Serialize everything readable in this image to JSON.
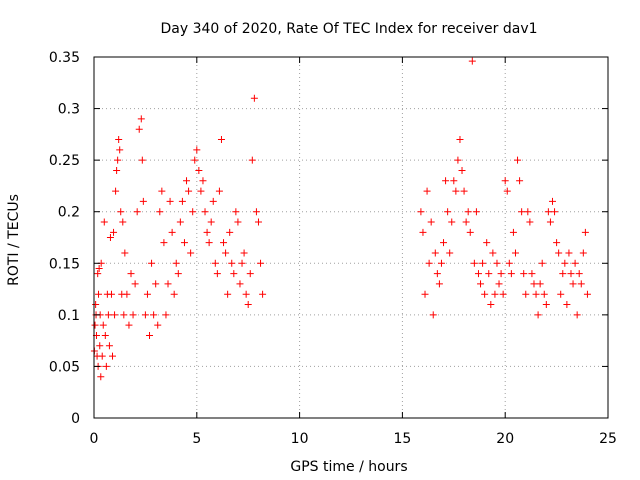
{
  "chart_data": {
    "type": "scatter",
    "title": "Day 340 of 2020, Rate Of TEC Index for receiver dav1",
    "xlabel": "GPS time / hours",
    "ylabel": "ROTI / TECUs",
    "xlim": [
      0,
      25
    ],
    "ylim": [
      0,
      0.35
    ],
    "xticks": [
      0,
      5,
      10,
      15,
      20,
      25
    ],
    "xtick_labels": [
      "0",
      "5",
      "10",
      "15",
      "20",
      "25"
    ],
    "yticks": [
      0,
      0.05,
      0.1,
      0.15,
      0.2,
      0.25,
      0.3,
      0.35
    ],
    "ytick_labels": [
      "0",
      "0.05",
      "0.1",
      "0.15",
      "0.2",
      "0.25",
      "0.3",
      "0.35"
    ],
    "grid": true,
    "marker": "+",
    "color": "#ff0000",
    "series": [
      {
        "x": [
          0.02,
          0.05,
          0.08,
          0.1,
          0.12,
          0.15,
          0.18,
          0.2,
          0.22,
          0.25,
          0.28,
          0.3,
          0.33,
          0.35,
          0.4,
          0.45,
          0.5,
          0.55,
          0.6,
          0.65,
          0.7,
          0.75,
          0.8,
          0.85,
          0.9,
          0.95,
          1.0,
          1.05,
          1.1,
          1.15,
          1.2,
          1.25,
          1.3,
          1.35,
          1.4,
          1.45,
          1.5,
          1.6,
          1.7,
          1.8,
          1.9,
          2.0,
          2.1,
          2.2,
          2.3,
          2.35,
          2.4,
          2.5,
          2.6,
          2.7,
          2.8,
          2.9,
          3.0,
          3.1,
          3.2,
          3.3,
          3.4,
          3.5,
          3.6,
          3.7,
          3.8,
          3.9,
          4.0,
          4.1,
          4.2,
          4.3,
          4.4,
          4.5,
          4.6,
          4.7,
          4.8,
          4.9,
          5.0,
          5.1,
          5.2,
          5.3,
          5.4,
          5.5,
          5.6,
          5.7,
          5.8,
          5.9,
          6.0,
          6.1,
          6.2,
          6.3,
          6.4,
          6.5,
          6.6,
          6.7,
          6.8,
          6.9,
          7.0,
          7.1,
          7.2,
          7.3,
          7.4,
          7.5,
          7.6,
          7.7,
          7.8,
          7.9,
          8.0,
          8.1,
          8.2
        ],
        "y": [
          0.065,
          0.09,
          0.11,
          0.1,
          0.08,
          0.06,
          0.14,
          0.05,
          0.12,
          0.145,
          0.07,
          0.1,
          0.04,
          0.15,
          0.06,
          0.09,
          0.19,
          0.08,
          0.05,
          0.12,
          0.1,
          0.07,
          0.175,
          0.12,
          0.06,
          0.18,
          0.1,
          0.22,
          0.24,
          0.25,
          0.27,
          0.26,
          0.2,
          0.12,
          0.19,
          0.1,
          0.16,
          0.12,
          0.09,
          0.14,
          0.1,
          0.13,
          0.2,
          0.28,
          0.29,
          0.25,
          0.21,
          0.1,
          0.12,
          0.08,
          0.15,
          0.1,
          0.13,
          0.09,
          0.2,
          0.22,
          0.17,
          0.1,
          0.13,
          0.21,
          0.18,
          0.12,
          0.15,
          0.14,
          0.19,
          0.21,
          0.17,
          0.23,
          0.22,
          0.16,
          0.2,
          0.25,
          0.26,
          0.24,
          0.22,
          0.23,
          0.2,
          0.18,
          0.17,
          0.19,
          0.21,
          0.15,
          0.14,
          0.22,
          0.27,
          0.17,
          0.16,
          0.12,
          0.18,
          0.15,
          0.14,
          0.2,
          0.19,
          0.13,
          0.15,
          0.16,
          0.12,
          0.11,
          0.14,
          0.25,
          0.31,
          0.2,
          0.19,
          0.15,
          0.12
        ]
      },
      {
        "x": [
          15.9,
          16.0,
          16.1,
          16.2,
          16.3,
          16.4,
          16.5,
          16.6,
          16.7,
          16.8,
          16.9,
          17.0,
          17.1,
          17.2,
          17.3,
          17.4,
          17.5,
          17.6,
          17.7,
          17.8,
          17.9,
          18.0,
          18.1,
          18.2,
          18.3,
          18.4,
          18.5,
          18.6,
          18.7,
          18.8,
          18.9,
          19.0,
          19.1,
          19.2,
          19.3,
          19.4,
          19.5,
          19.6,
          19.7,
          19.8,
          19.9,
          20.0,
          20.1,
          20.2,
          20.3,
          20.4,
          20.5,
          20.6,
          20.7,
          20.8,
          20.9,
          21.0,
          21.1,
          21.2,
          21.3,
          21.4,
          21.5,
          21.6,
          21.7,
          21.8,
          21.9,
          22.0,
          22.1,
          22.2,
          22.3,
          22.4,
          22.5,
          22.6,
          22.7,
          22.8,
          22.9,
          23.0,
          23.1,
          23.2,
          23.3,
          23.4,
          23.5,
          23.6,
          23.7,
          23.8,
          23.9,
          24.0
        ],
        "y": [
          0.2,
          0.18,
          0.12,
          0.22,
          0.15,
          0.19,
          0.1,
          0.16,
          0.14,
          0.13,
          0.15,
          0.17,
          0.23,
          0.2,
          0.16,
          0.19,
          0.23,
          0.22,
          0.25,
          0.27,
          0.24,
          0.22,
          0.19,
          0.2,
          0.18,
          0.346,
          0.15,
          0.2,
          0.14,
          0.13,
          0.15,
          0.12,
          0.17,
          0.14,
          0.11,
          0.16,
          0.12,
          0.15,
          0.13,
          0.14,
          0.12,
          0.23,
          0.22,
          0.15,
          0.14,
          0.18,
          0.16,
          0.25,
          0.23,
          0.2,
          0.14,
          0.12,
          0.2,
          0.19,
          0.14,
          0.13,
          0.12,
          0.1,
          0.13,
          0.15,
          0.12,
          0.11,
          0.2,
          0.19,
          0.21,
          0.2,
          0.17,
          0.16,
          0.12,
          0.14,
          0.15,
          0.11,
          0.16,
          0.14,
          0.13,
          0.15,
          0.1,
          0.14,
          0.13,
          0.16,
          0.18,
          0.12
        ]
      }
    ]
  }
}
